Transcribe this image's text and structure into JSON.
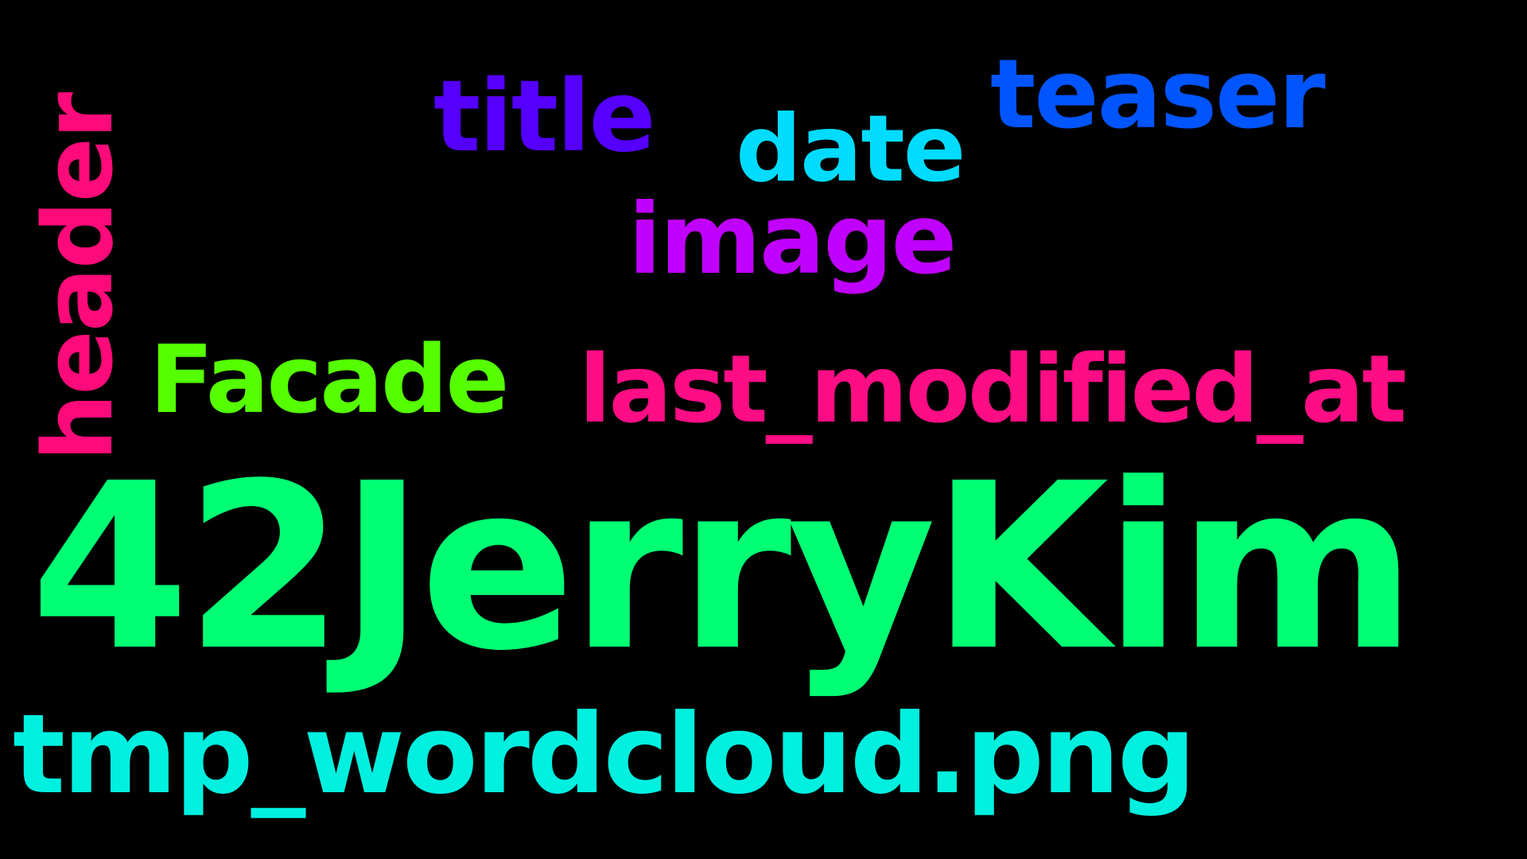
{
  "words": {
    "w42jerrykim": {
      "text": "42JerryKim",
      "color": "#00ff73"
    },
    "tmp_wordcloud": {
      "text": "tmp_wordcloud.png",
      "color": "#00f0e0"
    },
    "last_modified_at": {
      "text": "last_modified_at",
      "color": "#ff0d85"
    },
    "facade": {
      "text": "Facade",
      "color": "#55ff00"
    },
    "image": {
      "text": "image",
      "color": "#c000ff"
    },
    "title": {
      "text": "title",
      "color": "#5500ff"
    },
    "date": {
      "text": "date",
      "color": "#00dcff"
    },
    "teaser": {
      "text": "teaser",
      "color": "#0055ff"
    },
    "header": {
      "text": "header",
      "color": "#ff0a7a"
    }
  },
  "background": "#000000"
}
